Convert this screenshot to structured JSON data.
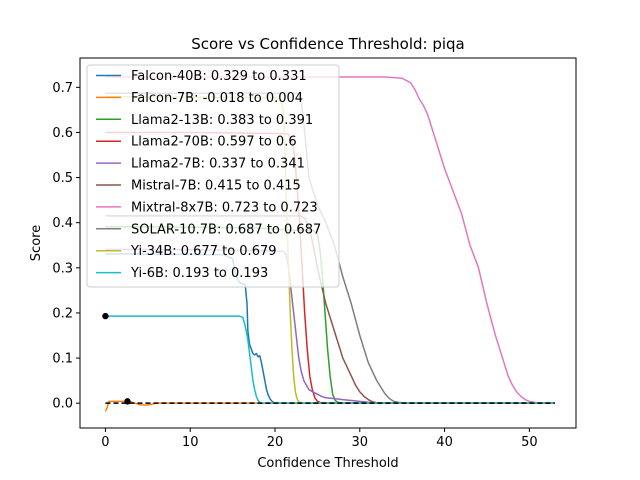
{
  "chart_data": {
    "type": "line",
    "title": "Score vs Confidence Threshold: piqa",
    "xlabel": "Confidence Threshold",
    "ylabel": "Score",
    "xlim": [
      -3.0,
      55.5
    ],
    "ylim": [
      -0.055,
      0.765
    ],
    "xticks": [
      0,
      10,
      20,
      30,
      40,
      50
    ],
    "yticks": [
      0.0,
      0.1,
      0.2,
      0.3,
      0.4,
      0.5,
      0.6,
      0.7
    ],
    "xtick_labels": [
      "0",
      "10",
      "20",
      "30",
      "40",
      "50"
    ],
    "ytick_labels": [
      "0.0",
      "0.1",
      "0.2",
      "0.3",
      "0.4",
      "0.5",
      "0.6",
      "0.7"
    ],
    "grid": false,
    "legend_position": "upper-left",
    "baseline": {
      "y": 0.0,
      "x_range": [
        0.0,
        53.0
      ],
      "color": "#000000",
      "style": "dashed"
    },
    "series": [
      {
        "name": "Falcon-40B: 0.329 to 0.331",
        "color": "#1f77b4",
        "x": [
          0,
          2,
          3,
          4,
          5,
          8,
          10,
          12,
          14,
          15.0,
          15.2,
          15.4,
          15.6,
          15.8,
          16.0,
          16.3,
          16.5,
          16.7,
          16.8,
          17.0,
          17.2,
          17.4,
          17.6,
          17.8,
          18.0,
          18.2,
          18.4,
          18.6,
          18.8,
          19.0,
          19.2,
          19.4,
          19.6,
          19.8,
          20.0,
          20.5,
          21,
          25,
          30,
          40,
          50,
          53
        ],
        "y": [
          0.331,
          0.331,
          0.331,
          0.331,
          0.33,
          0.33,
          0.33,
          0.329,
          0.329,
          0.32,
          0.3,
          0.285,
          0.275,
          0.268,
          0.265,
          0.265,
          0.26,
          0.22,
          0.16,
          0.13,
          0.12,
          0.11,
          0.107,
          0.11,
          0.103,
          0.105,
          0.09,
          0.07,
          0.05,
          0.03,
          0.018,
          0.01,
          0.005,
          0.002,
          0.0,
          0.0,
          0.0,
          0.0,
          0.0,
          0.0,
          0.0,
          0.0
        ]
      },
      {
        "name": "Falcon-7B: -0.018 to 0.004",
        "color": "#ff7f0e",
        "x": [
          0,
          0.2,
          0.4,
          0.8,
          1.5,
          2.5,
          3.0,
          3.5,
          4.0,
          4.5,
          5.0,
          5.5,
          6,
          10,
          20,
          30,
          40,
          50,
          53
        ],
        "y": [
          -0.018,
          -0.01,
          0.004,
          0.004,
          0.004,
          0.004,
          0.003,
          0.0,
          -0.003,
          -0.004,
          -0.004,
          -0.002,
          0.0,
          0.0,
          0.0,
          0.0,
          0.0,
          0.0,
          0.0
        ]
      },
      {
        "name": "Llama2-13B: 0.383 to 0.391",
        "color": "#2ca02c",
        "x": [
          0,
          5,
          10,
          15,
          18,
          20,
          21,
          22,
          23,
          24,
          24.5,
          25.0,
          25.3,
          25.6,
          25.9,
          26.2,
          26.5,
          26.8,
          27.1,
          27.5,
          28,
          30,
          40,
          50,
          53
        ],
        "y": [
          0.391,
          0.391,
          0.39,
          0.389,
          0.388,
          0.386,
          0.384,
          0.383,
          0.383,
          0.383,
          0.383,
          0.375,
          0.34,
          0.28,
          0.2,
          0.12,
          0.06,
          0.02,
          0.006,
          0.001,
          0.0,
          0.0,
          0.0,
          0.0,
          0.0
        ]
      },
      {
        "name": "Llama2-70B: 0.597 to 0.6",
        "color": "#d62728",
        "x": [
          0,
          5,
          10,
          15,
          18,
          20,
          21,
          21.5,
          22.0,
          22.3,
          22.6,
          22.9,
          23.2,
          23.5,
          23.8,
          24.1,
          24.4,
          24.7,
          25.0,
          25.4,
          26,
          30,
          40,
          50,
          53
        ],
        "y": [
          0.6,
          0.6,
          0.6,
          0.599,
          0.598,
          0.598,
          0.597,
          0.597,
          0.585,
          0.55,
          0.48,
          0.4,
          0.3,
          0.2,
          0.12,
          0.06,
          0.03,
          0.012,
          0.004,
          0.001,
          0.0,
          0.0,
          0.0,
          0.0,
          0.0
        ]
      },
      {
        "name": "Llama2-7B: 0.337 to 0.341",
        "color": "#9467bd",
        "x": [
          0,
          5,
          10,
          15,
          18,
          20,
          21.0,
          21.3,
          21.6,
          21.9,
          22.2,
          22.5,
          22.8,
          23.1,
          23.4,
          23.7,
          24.0,
          24.5,
          25.0,
          25.5,
          26.0,
          27.0,
          28.0,
          29.0,
          30.0,
          31,
          32,
          40,
          50,
          53
        ],
        "y": [
          0.341,
          0.341,
          0.34,
          0.339,
          0.338,
          0.337,
          0.337,
          0.33,
          0.3,
          0.25,
          0.2,
          0.15,
          0.1,
          0.07,
          0.05,
          0.04,
          0.03,
          0.025,
          0.02,
          0.015,
          0.012,
          0.01,
          0.008,
          0.006,
          0.004,
          0.002,
          0.0,
          0.0,
          0.0,
          0.0
        ]
      },
      {
        "name": "Mistral-7B: 0.415 to 0.415",
        "color": "#8c564b",
        "x": [
          0,
          5,
          10,
          15,
          18,
          20,
          21,
          22,
          23,
          23.5,
          24.0,
          24.5,
          25.0,
          25.5,
          26.0,
          26.5,
          27.0,
          27.5,
          28.0,
          28.5,
          29.0,
          29.5,
          30.0,
          30.5,
          31.0,
          31.5,
          32,
          33,
          40,
          50,
          53
        ],
        "y": [
          0.415,
          0.415,
          0.415,
          0.415,
          0.415,
          0.415,
          0.415,
          0.415,
          0.415,
          0.41,
          0.39,
          0.35,
          0.3,
          0.26,
          0.22,
          0.19,
          0.16,
          0.13,
          0.1,
          0.08,
          0.06,
          0.04,
          0.025,
          0.015,
          0.008,
          0.003,
          0.001,
          0.0,
          0.0,
          0.0,
          0.0
        ]
      },
      {
        "name": "Mixtral-8x7B: 0.723 to 0.723",
        "color": "#e377c2",
        "x": [
          0,
          5,
          10,
          15,
          20,
          25,
          30,
          33,
          35,
          36,
          36.5,
          37,
          37.5,
          38,
          39,
          40,
          41,
          42,
          43,
          44,
          45,
          46,
          47,
          47.5,
          48,
          48.5,
          49,
          49.5,
          50,
          50.5,
          51,
          52,
          53
        ],
        "y": [
          0.723,
          0.723,
          0.723,
          0.723,
          0.723,
          0.723,
          0.723,
          0.723,
          0.72,
          0.71,
          0.695,
          0.675,
          0.66,
          0.64,
          0.58,
          0.52,
          0.47,
          0.42,
          0.35,
          0.3,
          0.22,
          0.15,
          0.09,
          0.06,
          0.04,
          0.025,
          0.015,
          0.008,
          0.004,
          0.002,
          0.001,
          0.0,
          0.0
        ]
      },
      {
        "name": "SOLAR-10.7B: 0.687 to 0.687",
        "color": "#7f7f7f",
        "x": [
          0,
          5,
          10,
          15,
          18,
          20,
          22,
          23,
          23.5,
          24,
          25,
          26,
          27,
          28,
          29,
          30,
          31,
          32,
          33,
          33.5,
          34,
          34.5,
          35,
          36,
          40,
          50,
          53
        ],
        "y": [
          0.687,
          0.687,
          0.687,
          0.687,
          0.687,
          0.687,
          0.687,
          0.687,
          0.6,
          0.5,
          0.44,
          0.4,
          0.35,
          0.28,
          0.22,
          0.15,
          0.09,
          0.05,
          0.02,
          0.01,
          0.004,
          0.002,
          0.001,
          0.0,
          0.0,
          0.0,
          0.0
        ]
      },
      {
        "name": "Yi-34B: 0.677 to 0.679",
        "color": "#bcbd22",
        "x": [
          0,
          5,
          10,
          15,
          18,
          19,
          20,
          20.5,
          21.0,
          21.2,
          21.4,
          21.6,
          21.8,
          22.0,
          22.2,
          22.4,
          22.6,
          22.8,
          23,
          25,
          30,
          40,
          50,
          53
        ],
        "y": [
          0.679,
          0.679,
          0.678,
          0.678,
          0.677,
          0.677,
          0.677,
          0.677,
          0.65,
          0.55,
          0.4,
          0.3,
          0.2,
          0.12,
          0.06,
          0.025,
          0.01,
          0.003,
          0.0,
          0.0,
          0.0,
          0.0,
          0.0,
          0.0
        ]
      },
      {
        "name": "Yi-6B: 0.193 to 0.193",
        "color": "#17becf",
        "x": [
          0,
          2,
          5,
          10,
          14,
          15,
          15.8,
          16.2,
          16.5,
          16.8,
          17.0,
          17.2,
          17.4,
          17.6,
          17.8,
          18.0,
          18.2,
          18.4,
          18.6,
          19,
          20,
          25,
          30,
          40,
          50,
          53
        ],
        "y": [
          0.193,
          0.193,
          0.193,
          0.193,
          0.193,
          0.193,
          0.193,
          0.19,
          0.17,
          0.14,
          0.11,
          0.08,
          0.05,
          0.03,
          0.015,
          0.006,
          0.002,
          0.0,
          0.0,
          0.0,
          0.0,
          0.0,
          0.0,
          0.0,
          0.0,
          0.0
        ]
      }
    ],
    "markers": [
      {
        "x": 0.0,
        "y": 0.193,
        "color": "#000000"
      },
      {
        "x": 2.6,
        "y": 0.004,
        "color": "#000000"
      }
    ]
  }
}
